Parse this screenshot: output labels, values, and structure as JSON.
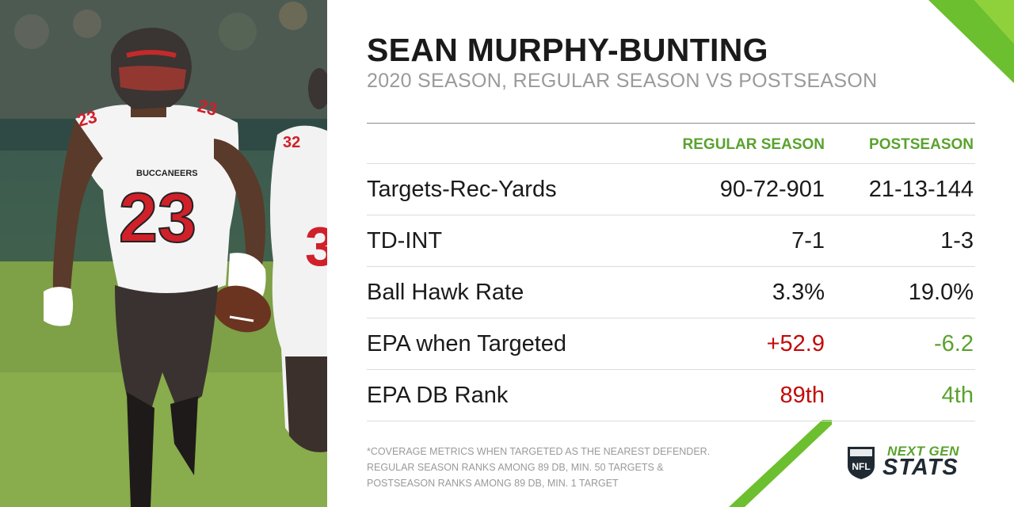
{
  "header": {
    "title": "SEAN MURPHY-BUNTING",
    "subtitle": "2020 SEASON, REGULAR SEASON VS POSTSEASON"
  },
  "table": {
    "columns": [
      "REGULAR SEASON",
      "POSTSEASON"
    ],
    "rows": [
      {
        "label": "Targets-Rec-Yards",
        "regular": "90-72-901",
        "post": "21-13-144"
      },
      {
        "label": "TD-INT",
        "regular": "7-1",
        "post": "1-3"
      },
      {
        "label": "Ball Hawk Rate",
        "regular": "3.3%",
        "post": "19.0%"
      },
      {
        "label": "EPA when Targeted",
        "regular": "+52.9",
        "post": "-6.2"
      },
      {
        "label": "EPA DB Rank",
        "regular": "89th",
        "post": "4th"
      }
    ]
  },
  "footnote": [
    "*COVERAGE METRICS WHEN TARGETED AS THE NEAREST DEFENDER.",
    "REGULAR SEASON RANKS AMONG 89 DB, MIN. 50 TARGETS &",
    "POSTSEASON RANKS AMONG 89 DB, MIN. 1 TARGET"
  ],
  "logo": {
    "line1": "NEXT GEN",
    "line2": "STATS",
    "shield_text": "NFL"
  },
  "photo": {
    "jersey_number": "23",
    "team_text": "BUCCANEERS"
  },
  "colors": {
    "accent_green": "#5aa22e",
    "negative_red": "#c20a0a",
    "title": "#1a1a1a",
    "muted": "#9a9a9a"
  }
}
